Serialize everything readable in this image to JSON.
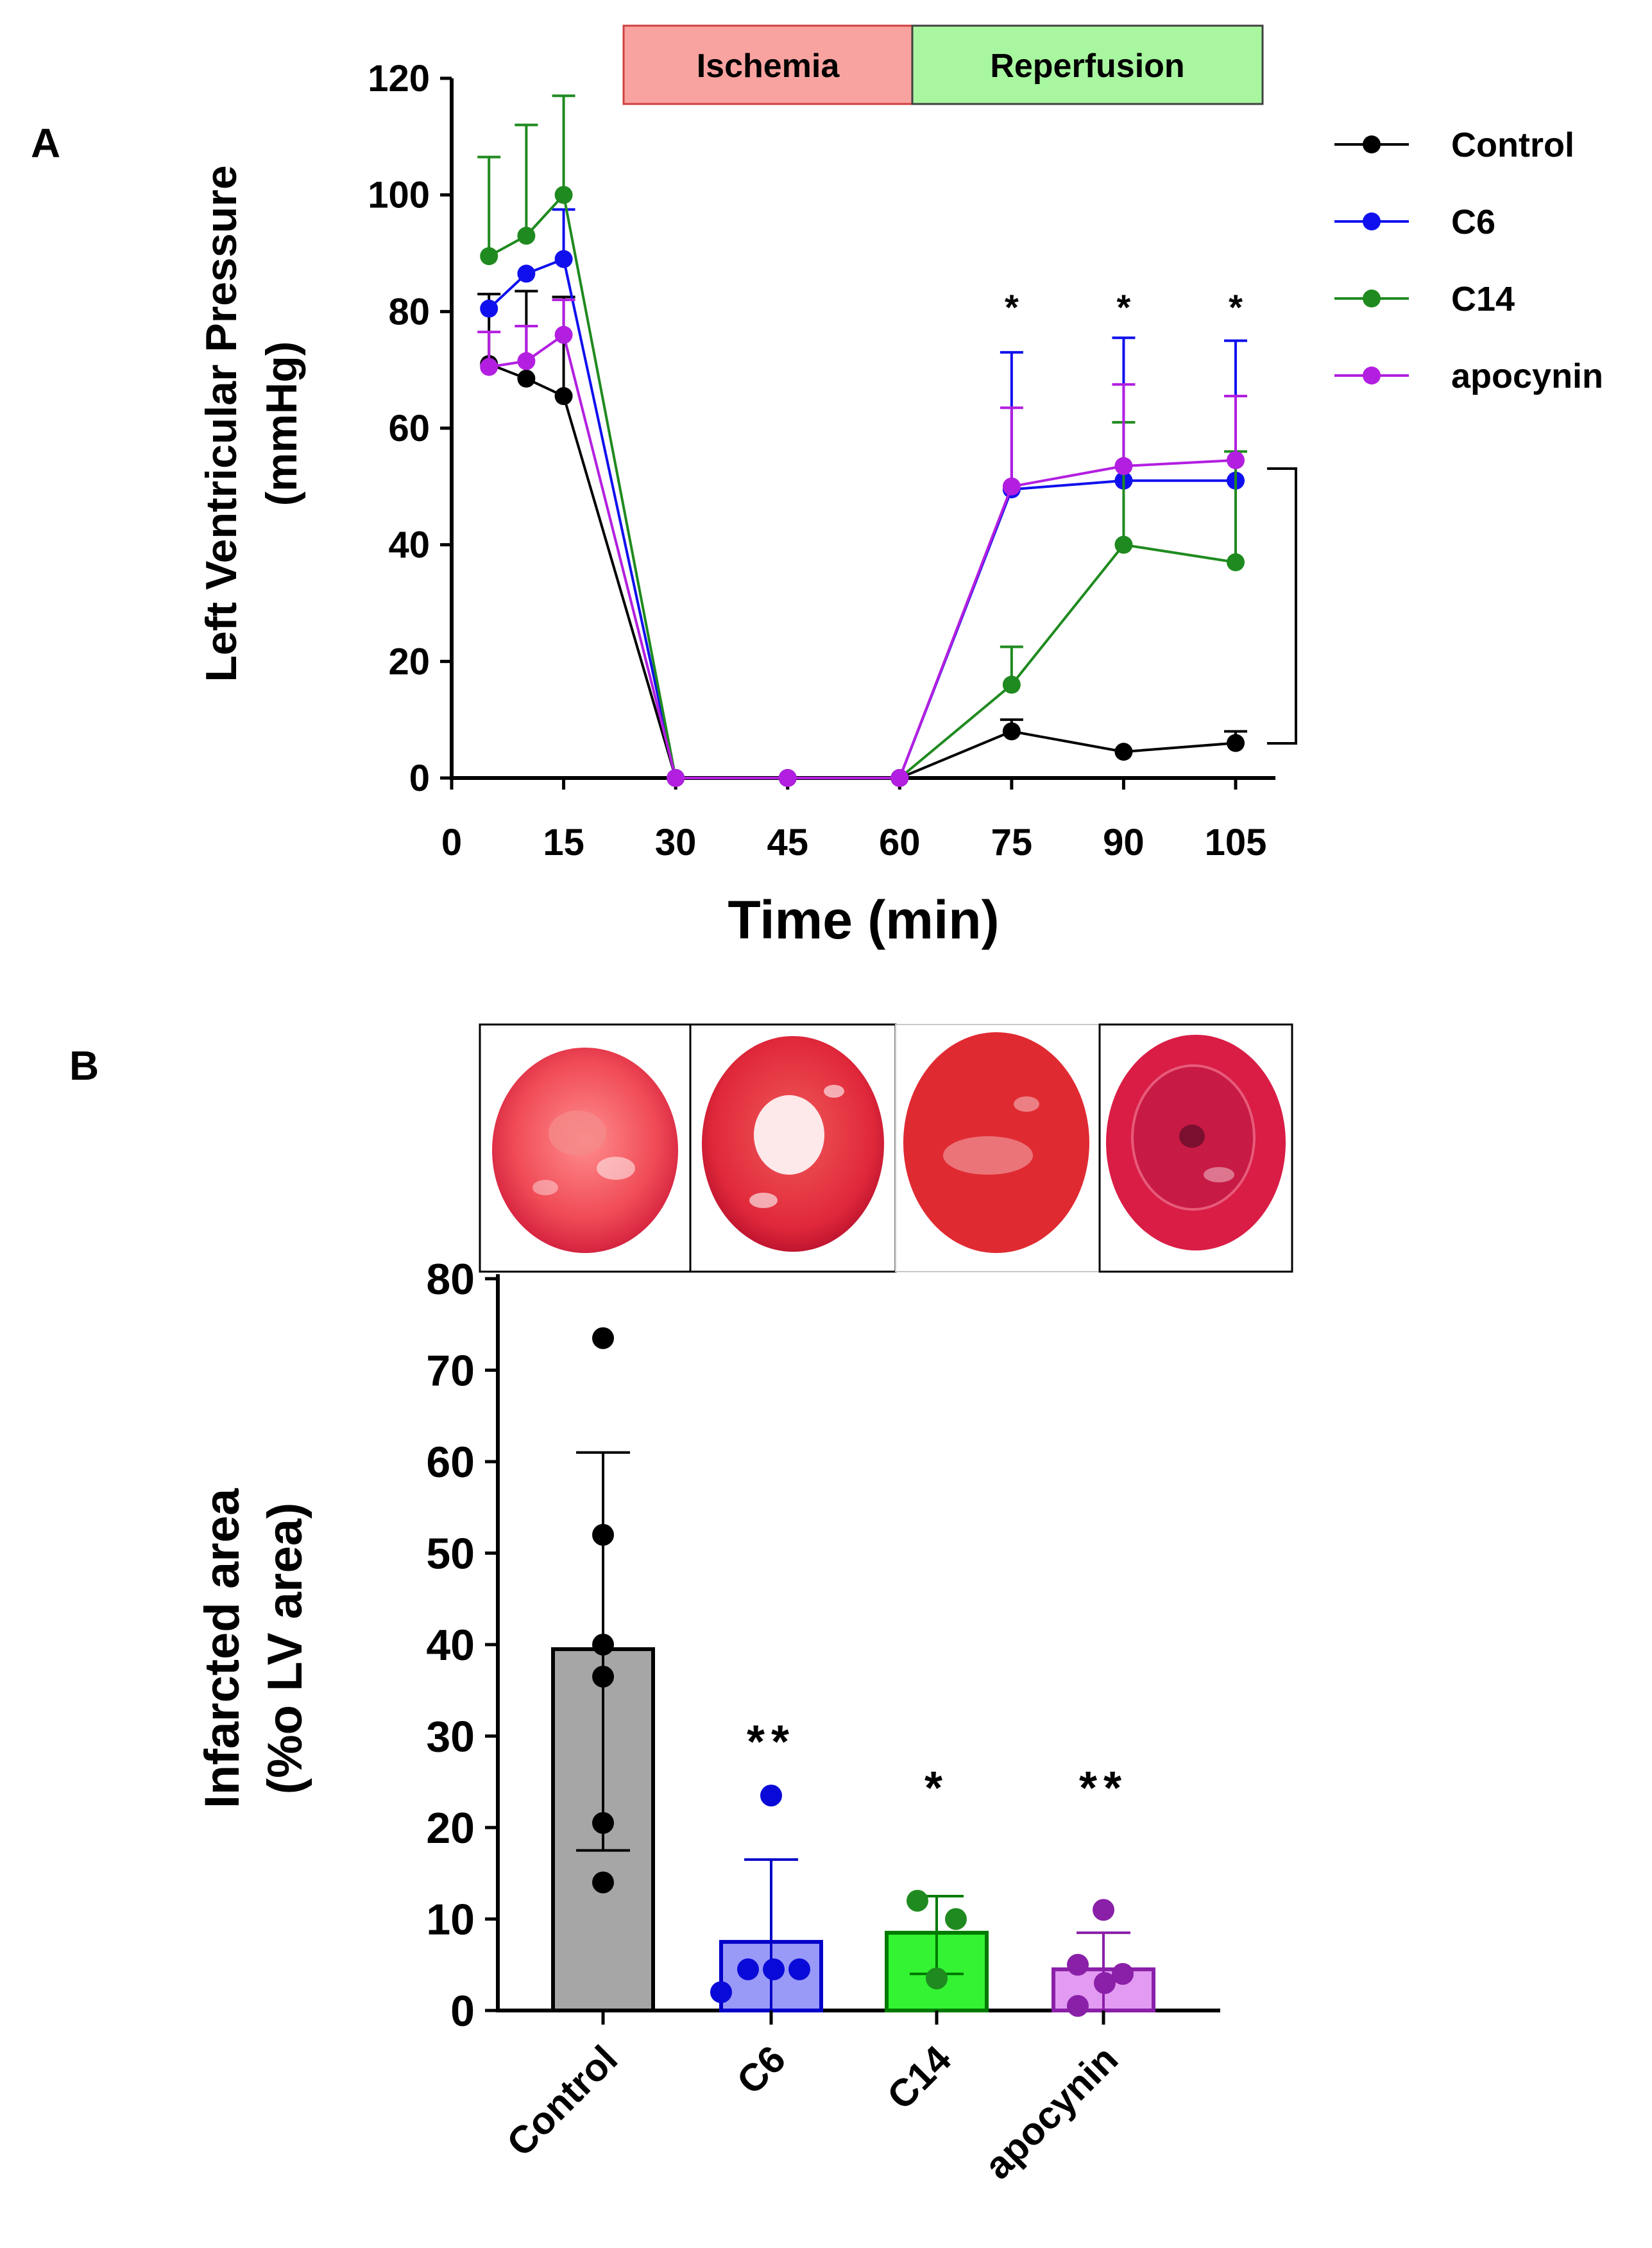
{
  "chart_data": [
    {
      "type": "line",
      "panel_label": "A",
      "xlabel": "Time (min)",
      "ylabel_line1": "Left Ventricular Pressure",
      "ylabel_line2": "(mmHg)",
      "xlim": [
        0,
        110
      ],
      "ylim": [
        0,
        120
      ],
      "x_ticks": [
        0,
        15,
        30,
        45,
        60,
        75,
        90,
        105
      ],
      "y_ticks": [
        0,
        20,
        40,
        60,
        80,
        100,
        120
      ],
      "phases": [
        {
          "label": "Ischemia",
          "color": "#f9a3a0"
        },
        {
          "label": "Reperfusion",
          "color": "#a8f7a0"
        }
      ],
      "significance": [
        {
          "x": 75,
          "label": "*"
        },
        {
          "x": 90,
          "label": "*"
        },
        {
          "x": 105,
          "label": "*"
        }
      ],
      "series": [
        {
          "name": "Control",
          "color": "#000000",
          "x": [
            5,
            10,
            15,
            30,
            45,
            60,
            75,
            90,
            105
          ],
          "y": [
            71,
            68.5,
            65.5,
            0,
            0,
            0,
            8,
            4.5,
            6
          ],
          "err": [
            12,
            15,
            17,
            0,
            0,
            0,
            2,
            0,
            2
          ]
        },
        {
          "name": "C6",
          "color": "#1010ee",
          "x": [
            5,
            10,
            15,
            30,
            45,
            60,
            75,
            90,
            105
          ],
          "y": [
            80.5,
            86.5,
            89,
            0,
            0,
            0,
            49.5,
            51,
            51
          ],
          "err": [
            0,
            0,
            8.5,
            0,
            0,
            0,
            23.5,
            24.5,
            24
          ]
        },
        {
          "name": "C14",
          "color": "#1f8a1f",
          "x": [
            5,
            10,
            15,
            30,
            45,
            60,
            75,
            90,
            105
          ],
          "y": [
            89.5,
            93,
            100,
            0,
            0,
            0,
            16,
            40,
            37
          ],
          "err": [
            17,
            19,
            17,
            0,
            0,
            0,
            6.5,
            21,
            19
          ]
        },
        {
          "name": "apocynin",
          "color": "#b31fe0",
          "x": [
            5,
            10,
            15,
            30,
            45,
            60,
            75,
            90,
            105
          ],
          "y": [
            70.5,
            71.5,
            76,
            0,
            0,
            0,
            50,
            53.5,
            54.5
          ],
          "err": [
            6,
            6,
            6,
            0,
            0,
            0,
            13.5,
            14,
            11
          ]
        }
      ]
    },
    {
      "type": "bar",
      "panel_label": "B",
      "ylabel_line1": "Infarcted area",
      "ylabel_line2": "(%o LV area)",
      "ylim": [
        0,
        80
      ],
      "y_ticks": [
        0,
        10,
        20,
        30,
        40,
        50,
        60,
        70,
        80
      ],
      "categories": [
        "Control",
        "C6",
        "C14",
        "apocynin"
      ],
      "values": [
        39.5,
        7.5,
        8.5,
        4.5
      ],
      "sd_upper": [
        61,
        16.5,
        12.5,
        8.5
      ],
      "sd_lower": [
        17.5,
        0,
        4,
        0
      ],
      "significance": [
        "",
        "**",
        "*",
        "**"
      ],
      "bar_colors": [
        "#a6a6a6",
        "#9999f8",
        "#33f333",
        "#e29af2"
      ],
      "edge_colors": [
        "#000000",
        "#0000c8",
        "#007a00",
        "#8a1fa8"
      ],
      "dot_colors": [
        "#000000",
        "#0a0ad8",
        "#1f8a1f",
        "#8a1fa8"
      ],
      "points": [
        [
          73.5,
          52,
          40,
          36.5,
          20.5,
          14
        ],
        [
          23.5,
          2,
          4.5,
          4.5,
          4.5
        ],
        [
          12,
          10,
          3.5
        ],
        [
          11,
          5,
          4,
          3,
          0.5
        ]
      ],
      "images": [
        {
          "name": "control-heart-slice-photo"
        },
        {
          "name": "c6-heart-slice-photo"
        },
        {
          "name": "c14-heart-slice-photo"
        },
        {
          "name": "apocynin-heart-slice-photo"
        }
      ]
    }
  ]
}
